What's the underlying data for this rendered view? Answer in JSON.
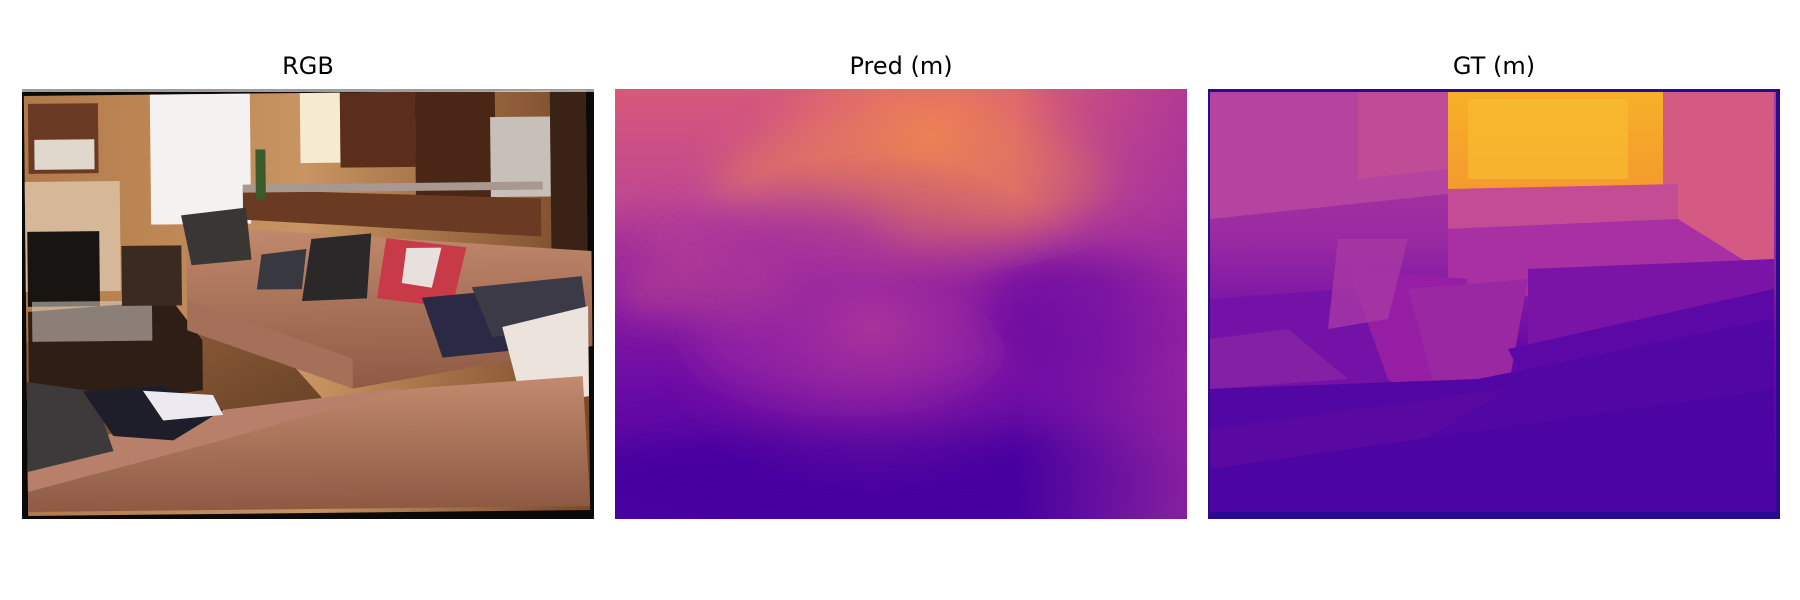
{
  "panels": [
    {
      "title": "RGB"
    },
    {
      "title": "Pred (m)"
    },
    {
      "title": "GT (m)"
    }
  ],
  "colormap": {
    "name": "plasma",
    "near": "#4a0aa0",
    "mid": "#b22f90",
    "far": "#f5b41f"
  },
  "rgb_palette": {
    "wall": "#c08a55",
    "sofa": "#b07860",
    "floor": "#8a5a35",
    "dark": "#2a1e18",
    "white": "#f0ece8",
    "pillow_dark": "#2c2c3a",
    "red_throw": "#c03040"
  }
}
